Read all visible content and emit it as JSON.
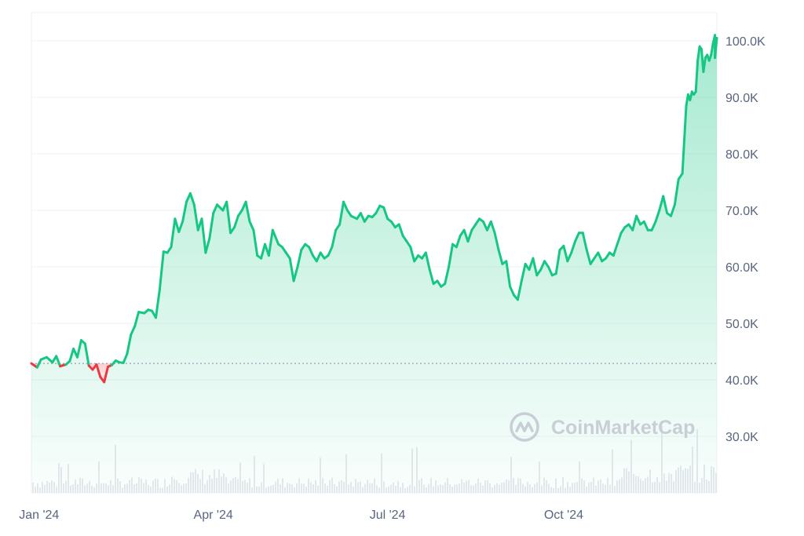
{
  "watermark": {
    "text": "CoinMarketCap"
  },
  "colors": {
    "up": "#16c784",
    "down": "#ea3943",
    "grid": "#eff2f5",
    "axis_text": "#58667e",
    "baseline": "#9aa0a8",
    "volume": "#e6e9ee"
  },
  "chart_data": {
    "type": "area",
    "x_axis": {
      "type": "date",
      "tick_labels": [
        "Jan '24",
        "Apr '24",
        "Jul '24",
        "Oct '24"
      ],
      "tick_dates": [
        "2024-01-01",
        "2024-04-01",
        "2024-07-01",
        "2024-10-01"
      ],
      "range": [
        "2023-12-28",
        "2024-12-20"
      ]
    },
    "y_axis": {
      "position": "right",
      "range": [
        20000,
        105000
      ],
      "ticks": [
        30000,
        40000,
        50000,
        60000,
        70000,
        80000,
        90000,
        100000
      ],
      "tick_labels": [
        "30.0K",
        "40.0K",
        "50.0K",
        "60.0K",
        "70.0K",
        "80.0K",
        "90.0K",
        "100.0K"
      ]
    },
    "grid": true,
    "baseline": 42900,
    "series": [
      {
        "points": [
          [
            "2023-12-28",
            42900
          ],
          [
            "2023-12-31",
            42200
          ],
          [
            "2024-01-02",
            43600
          ],
          [
            "2024-01-05",
            44000
          ],
          [
            "2024-01-08",
            43100
          ],
          [
            "2024-01-10",
            44200
          ],
          [
            "2024-01-12",
            42400
          ],
          [
            "2024-01-15",
            42700
          ],
          [
            "2024-01-17",
            43300
          ],
          [
            "2024-01-19",
            45500
          ],
          [
            "2024-01-21",
            44000
          ],
          [
            "2024-01-23",
            47000
          ],
          [
            "2024-01-25",
            46400
          ],
          [
            "2024-01-27",
            42500
          ],
          [
            "2024-01-29",
            41800
          ],
          [
            "2024-01-31",
            42700
          ],
          [
            "2024-02-02",
            40500
          ],
          [
            "2024-02-04",
            39600
          ],
          [
            "2024-02-06",
            42300
          ],
          [
            "2024-02-08",
            42600
          ],
          [
            "2024-02-10",
            43400
          ],
          [
            "2024-02-12",
            43100
          ],
          [
            "2024-02-14",
            43000
          ],
          [
            "2024-02-16",
            44600
          ],
          [
            "2024-02-18",
            48000
          ],
          [
            "2024-02-20",
            49500
          ],
          [
            "2024-02-22",
            52000
          ],
          [
            "2024-02-25",
            51800
          ],
          [
            "2024-02-27",
            52400
          ],
          [
            "2024-02-29",
            52200
          ],
          [
            "2024-03-02",
            51000
          ],
          [
            "2024-03-04",
            56000
          ],
          [
            "2024-03-06",
            62700
          ],
          [
            "2024-03-08",
            62500
          ],
          [
            "2024-03-10",
            63500
          ],
          [
            "2024-03-12",
            68500
          ],
          [
            "2024-03-14",
            66200
          ],
          [
            "2024-03-16",
            68000
          ],
          [
            "2024-03-18",
            71500
          ],
          [
            "2024-03-20",
            73000
          ],
          [
            "2024-03-22",
            71000
          ],
          [
            "2024-03-24",
            66500
          ],
          [
            "2024-03-26",
            68500
          ],
          [
            "2024-03-28",
            62500
          ],
          [
            "2024-03-30",
            65000
          ],
          [
            "2024-04-01",
            69500
          ],
          [
            "2024-04-03",
            71000
          ],
          [
            "2024-04-06",
            70000
          ],
          [
            "2024-04-08",
            71500
          ],
          [
            "2024-04-10",
            66000
          ],
          [
            "2024-04-12",
            67000
          ],
          [
            "2024-04-14",
            69000
          ],
          [
            "2024-04-16",
            70000
          ],
          [
            "2024-04-18",
            71500
          ],
          [
            "2024-04-20",
            68000
          ],
          [
            "2024-04-22",
            66500
          ],
          [
            "2024-04-24",
            62000
          ],
          [
            "2024-04-26",
            61500
          ],
          [
            "2024-04-28",
            64000
          ],
          [
            "2024-04-30",
            62000
          ],
          [
            "2024-05-02",
            66500
          ],
          [
            "2024-05-05",
            64000
          ],
          [
            "2024-05-07",
            63500
          ],
          [
            "2024-05-09",
            62500
          ],
          [
            "2024-05-11",
            61500
          ],
          [
            "2024-05-13",
            57500
          ],
          [
            "2024-05-15",
            60000
          ],
          [
            "2024-05-17",
            63000
          ],
          [
            "2024-05-19",
            64000
          ],
          [
            "2024-05-21",
            63500
          ],
          [
            "2024-05-23",
            62000
          ],
          [
            "2024-05-25",
            61000
          ],
          [
            "2024-05-27",
            62500
          ],
          [
            "2024-05-29",
            61500
          ],
          [
            "2024-05-31",
            62000
          ],
          [
            "2024-06-02",
            63500
          ],
          [
            "2024-06-04",
            66500
          ],
          [
            "2024-06-06",
            67500
          ],
          [
            "2024-06-08",
            71500
          ],
          [
            "2024-06-10",
            70000
          ],
          [
            "2024-06-12",
            69000
          ],
          [
            "2024-06-15",
            68500
          ],
          [
            "2024-06-17",
            69500
          ],
          [
            "2024-06-19",
            68000
          ],
          [
            "2024-06-21",
            69000
          ],
          [
            "2024-06-23",
            68800
          ],
          [
            "2024-06-25",
            69500
          ],
          [
            "2024-06-27",
            70800
          ],
          [
            "2024-06-29",
            70500
          ],
          [
            "2024-07-01",
            68500
          ],
          [
            "2024-07-03",
            68000
          ],
          [
            "2024-07-05",
            67000
          ],
          [
            "2024-07-07",
            67500
          ],
          [
            "2024-07-09",
            65500
          ],
          [
            "2024-07-11",
            64500
          ],
          [
            "2024-07-13",
            63500
          ],
          [
            "2024-07-15",
            61000
          ],
          [
            "2024-07-17",
            62000
          ],
          [
            "2024-07-19",
            61500
          ],
          [
            "2024-07-21",
            62500
          ],
          [
            "2024-07-23",
            59500
          ],
          [
            "2024-07-25",
            57000
          ],
          [
            "2024-07-27",
            57500
          ],
          [
            "2024-07-29",
            56500
          ],
          [
            "2024-07-31",
            57000
          ],
          [
            "2024-08-02",
            60000
          ],
          [
            "2024-08-04",
            64000
          ],
          [
            "2024-08-06",
            63500
          ],
          [
            "2024-08-08",
            65500
          ],
          [
            "2024-08-10",
            66500
          ],
          [
            "2024-08-12",
            64500
          ],
          [
            "2024-08-14",
            66500
          ],
          [
            "2024-08-16",
            67500
          ],
          [
            "2024-08-18",
            68500
          ],
          [
            "2024-08-20",
            68000
          ],
          [
            "2024-08-22",
            66500
          ],
          [
            "2024-08-24",
            68000
          ],
          [
            "2024-08-26",
            66000
          ],
          [
            "2024-08-28",
            63000
          ],
          [
            "2024-08-30",
            60500
          ],
          [
            "2024-09-01",
            61000
          ],
          [
            "2024-09-03",
            56500
          ],
          [
            "2024-09-05",
            55000
          ],
          [
            "2024-09-07",
            54200
          ],
          [
            "2024-09-09",
            57500
          ],
          [
            "2024-09-11",
            60500
          ],
          [
            "2024-09-13",
            59500
          ],
          [
            "2024-09-15",
            61500
          ],
          [
            "2024-09-17",
            58500
          ],
          [
            "2024-09-19",
            59500
          ],
          [
            "2024-09-21",
            61000
          ],
          [
            "2024-09-23",
            60000
          ],
          [
            "2024-09-25",
            58500
          ],
          [
            "2024-09-27",
            58800
          ],
          [
            "2024-09-29",
            63000
          ],
          [
            "2024-10-01",
            63700
          ],
          [
            "2024-10-03",
            61000
          ],
          [
            "2024-10-05",
            62500
          ],
          [
            "2024-10-07",
            64500
          ],
          [
            "2024-10-09",
            66000
          ],
          [
            "2024-10-11",
            66000
          ],
          [
            "2024-10-13",
            63000
          ],
          [
            "2024-10-15",
            60500
          ],
          [
            "2024-10-17",
            61500
          ],
          [
            "2024-10-19",
            62500
          ],
          [
            "2024-10-21",
            61000
          ],
          [
            "2024-10-23",
            61500
          ],
          [
            "2024-10-25",
            62500
          ],
          [
            "2024-10-27",
            62000
          ],
          [
            "2024-10-29",
            64000
          ],
          [
            "2024-10-31",
            66000
          ],
          [
            "2024-11-02",
            67000
          ],
          [
            "2024-11-04",
            67500
          ],
          [
            "2024-11-06",
            66500
          ],
          [
            "2024-11-08",
            69000
          ],
          [
            "2024-11-10",
            67500
          ],
          [
            "2024-11-12",
            68000
          ],
          [
            "2024-11-14",
            66500
          ],
          [
            "2024-11-16",
            66500
          ],
          [
            "2024-11-18",
            68000
          ],
          [
            "2024-11-20",
            70000
          ],
          [
            "2024-11-22",
            72500
          ],
          [
            "2024-11-24",
            69500
          ],
          [
            "2024-11-26",
            69000
          ],
          [
            "2024-11-28",
            71000
          ],
          [
            "2024-11-30",
            75500
          ],
          [
            "2024-12-02",
            76500
          ],
          [
            "2024-12-04",
            88500
          ],
          [
            "2024-12-05",
            90500
          ],
          [
            "2024-12-06",
            89500
          ],
          [
            "2024-12-07",
            91000
          ],
          [
            "2024-12-08",
            90500
          ],
          [
            "2024-12-09",
            91000
          ],
          [
            "2024-12-10",
            96500
          ],
          [
            "2024-12-11",
            99000
          ],
          [
            "2024-12-12",
            98500
          ],
          [
            "2024-12-13",
            94500
          ],
          [
            "2024-12-14",
            97000
          ],
          [
            "2024-12-15",
            97500
          ],
          [
            "2024-12-16",
            96500
          ],
          [
            "2024-12-17",
            97500
          ],
          [
            "2024-12-18",
            99500
          ],
          [
            "2024-12-19",
            101000
          ],
          [
            "2024-12-19",
            97000
          ],
          [
            "2024-12-20",
            100500
          ]
        ]
      }
    ],
    "volume_bars": true
  }
}
